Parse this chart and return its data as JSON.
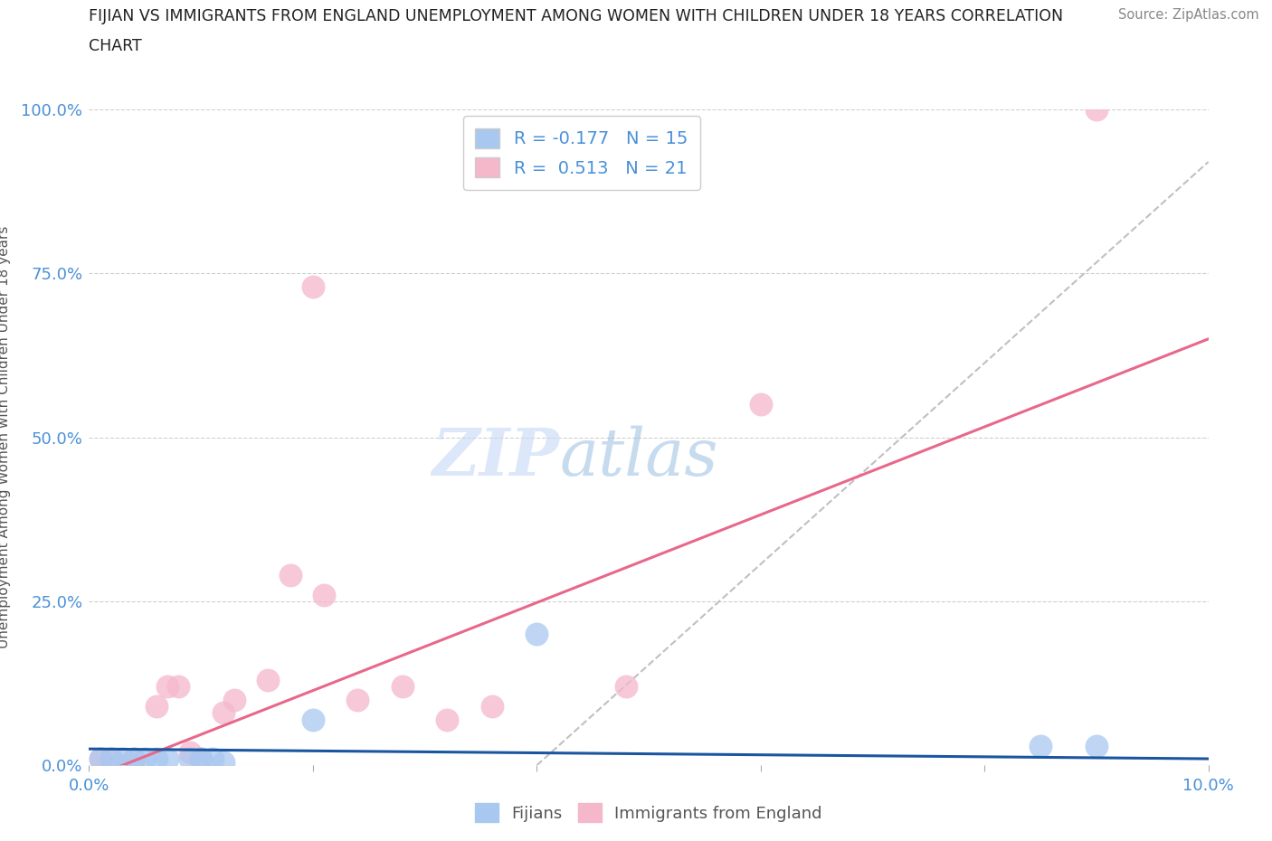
{
  "title_line1": "FIJIAN VS IMMIGRANTS FROM ENGLAND UNEMPLOYMENT AMONG WOMEN WITH CHILDREN UNDER 18 YEARS CORRELATION",
  "title_line2": "CHART",
  "source": "Source: ZipAtlas.com",
  "ylabel": "Unemployment Among Women with Children Under 18 years",
  "xmin": 0.0,
  "xmax": 0.1,
  "ymin": 0.0,
  "ymax": 1.0,
  "yticks": [
    0.0,
    0.25,
    0.5,
    0.75,
    1.0
  ],
  "ytick_labels": [
    "0.0%",
    "25.0%",
    "50.0%",
    "75.0%",
    "100.0%"
  ],
  "xtick_positions": [
    0.0,
    0.02,
    0.04,
    0.06,
    0.08,
    0.1
  ],
  "xtick_labels": [
    "0.0%",
    "",
    "",
    "",
    "",
    "10.0%"
  ],
  "fijian_color": "#a8c8f0",
  "england_color": "#f5b8cb",
  "fijian_line_color": "#1a56a0",
  "england_line_color": "#e8688a",
  "dashed_line_color": "#c0c0c0",
  "tick_label_color": "#4a90d9",
  "ylabel_color": "#555555",
  "R_fijian": -0.177,
  "N_fijian": 15,
  "R_england": 0.513,
  "N_england": 21,
  "watermark_zip": "ZIP",
  "watermark_atlas": "atlas",
  "fijian_scatter_x": [
    0.001,
    0.002,
    0.003,
    0.004,
    0.005,
    0.006,
    0.007,
    0.009,
    0.01,
    0.011,
    0.012,
    0.02,
    0.04,
    0.085,
    0.09
  ],
  "fijian_scatter_y": [
    0.01,
    0.01,
    0.01,
    0.01,
    0.01,
    0.01,
    0.01,
    0.01,
    0.01,
    0.01,
    0.005,
    0.07,
    0.2,
    0.03,
    0.03
  ],
  "england_scatter_x": [
    0.001,
    0.002,
    0.004,
    0.006,
    0.007,
    0.008,
    0.009,
    0.01,
    0.012,
    0.013,
    0.016,
    0.018,
    0.02,
    0.021,
    0.024,
    0.028,
    0.032,
    0.036,
    0.048,
    0.06,
    0.09
  ],
  "england_scatter_y": [
    0.01,
    0.01,
    0.01,
    0.09,
    0.12,
    0.12,
    0.02,
    0.01,
    0.08,
    0.1,
    0.13,
    0.29,
    0.73,
    0.26,
    0.1,
    0.12,
    0.07,
    0.09,
    0.12,
    0.55,
    1.0
  ],
  "england_line_x0": 0.0,
  "england_line_y0": -0.02,
  "england_line_x1": 0.1,
  "england_line_y1": 0.65,
  "fijian_line_x0": 0.0,
  "fijian_line_y0": 0.025,
  "fijian_line_x1": 0.1,
  "fijian_line_y1": 0.01,
  "dashed_line_x0": 0.04,
  "dashed_line_y0": 0.0,
  "dashed_line_x1": 0.1,
  "dashed_line_y1": 0.92,
  "background_color": "#ffffff",
  "grid_color": "#d0d0d0",
  "legend_label_fijian": "Fijians",
  "legend_label_england": "Immigrants from England"
}
